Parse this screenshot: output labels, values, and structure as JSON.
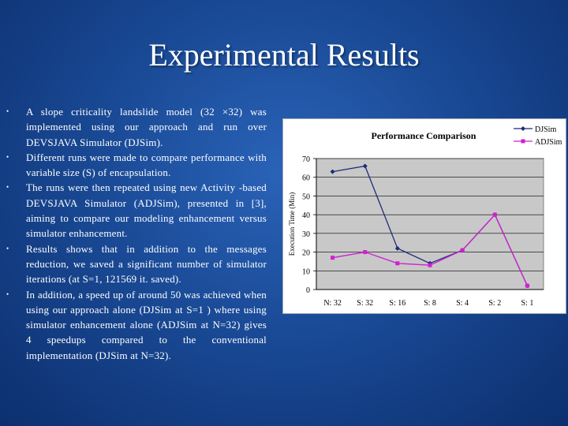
{
  "slide": {
    "title": "Experimental Results",
    "bullets": [
      "A slope criticality landslide model (32 ×32) was implemented using our approach and run over DEVSJAVA Simulator (DJSim).",
      "Different runs were made to compare performance with variable size (S) of encapsulation.",
      "The runs were then repeated using new Activity -based DEVSJAVA Simulator (ADJSim), presented in [3], aiming to compare our modeling enhancement versus simulator enhancement.",
      "Results shows that in addition to the messages reduction, we saved a significant number of simulator iterations (at S=1, 121569 it. saved).",
      "In addition, a speed up of around 50 was achieved when using our approach alone (DJSim at S=1 ) where using simulator enhancement alone (ADJSim at N=32) gives 4 speedups compared to the conventional implementation (DJSim at N=32)."
    ],
    "bullet_glyph": "•"
  },
  "chart_data": {
    "type": "line",
    "title": "Performance Comparison",
    "xlabel": "",
    "ylabel": "Execution Time (Min)",
    "categories": [
      "N: 32",
      "S: 32",
      "S: 16",
      "S: 8",
      "S: 4",
      "S: 2",
      "S: 1"
    ],
    "ylim": [
      0,
      70
    ],
    "yticks": [
      0,
      10,
      20,
      30,
      40,
      50,
      60,
      70
    ],
    "grid": "horizontal",
    "legend": "top-right",
    "series": [
      {
        "name": "DJSim",
        "color": "#1f2a7a",
        "marker": "diamond",
        "values": [
          63,
          66,
          22,
          14,
          21,
          40,
          2
        ]
      },
      {
        "name": "ADJSim",
        "color": "#d11fd1",
        "marker": "square",
        "values": [
          17,
          20,
          14,
          13,
          21,
          40,
          2
        ]
      }
    ]
  }
}
